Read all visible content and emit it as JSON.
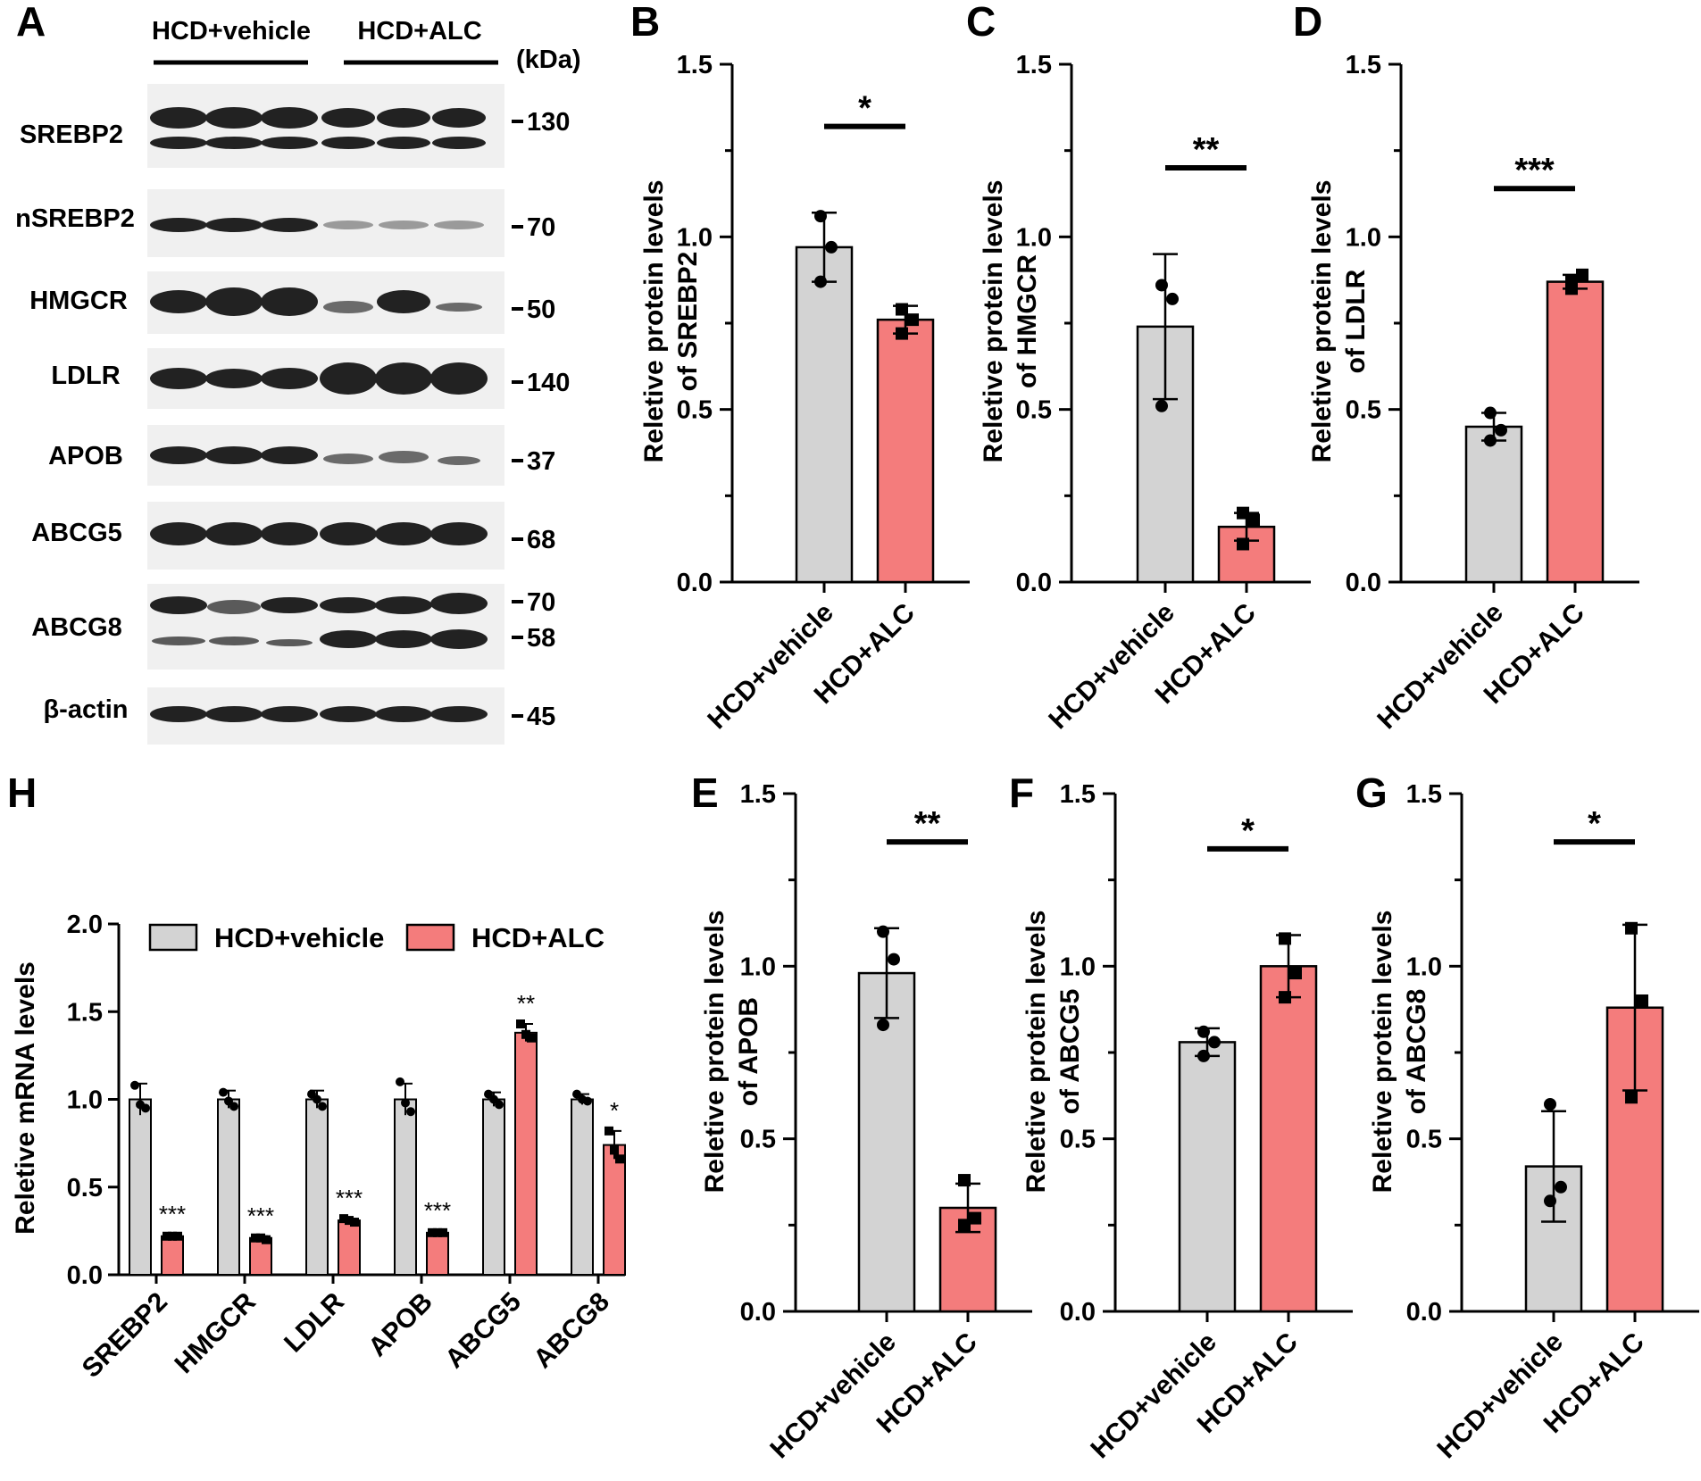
{
  "colors": {
    "vehicle": "#d3d3d3",
    "alc": "#f47c7c",
    "edge": "#000000",
    "blot_bg": "#f0f0f0"
  },
  "groups": [
    "HCD+vehicle",
    "HCD+ALC"
  ],
  "panel_A": {
    "letter": "A",
    "group_header_1": "HCD+vehicle",
    "group_header_2": "HCD+ALC",
    "kda_unit": "(kDa)",
    "blots": [
      {
        "label": "SREBP2",
        "markers": [
          "130"
        ]
      },
      {
        "label": "nSREBP2",
        "markers": [
          "70"
        ]
      },
      {
        "label": "HMGCR",
        "markers": [
          "50"
        ]
      },
      {
        "label": "LDLR",
        "markers": [
          "140"
        ]
      },
      {
        "label": "APOB",
        "markers": [
          "37"
        ]
      },
      {
        "label": "ABCG5",
        "markers": [
          "68"
        ]
      },
      {
        "label": "ABCG8",
        "markers": [
          "70",
          "58"
        ]
      },
      {
        "label": "β-actin",
        "markers": [
          "45"
        ]
      }
    ]
  },
  "chart_data": [
    {
      "panel": "B",
      "type": "bar",
      "ylabel_line1": "Reletive protein levels",
      "ylabel_line2": "of SREBP2",
      "ylim": [
        0,
        1.5
      ],
      "yticks": [
        "0.0",
        "0.5",
        "1.0",
        "1.5"
      ],
      "categories": [
        "HCD+vehicle",
        "HCD+ALC"
      ],
      "values": [
        0.97,
        0.76
      ],
      "errors": [
        0.1,
        0.04
      ],
      "points": [
        [
          1.06,
          0.97,
          0.87
        ],
        [
          0.79,
          0.76,
          0.72
        ]
      ],
      "significance": "*"
    },
    {
      "panel": "C",
      "type": "bar",
      "ylabel_line1": "Reletive protein levels",
      "ylabel_line2": "of HMGCR",
      "ylim": [
        0,
        1.5
      ],
      "yticks": [
        "0.0",
        "0.5",
        "1.0",
        "1.5"
      ],
      "categories": [
        "HCD+vehicle",
        "HCD+ALC"
      ],
      "values": [
        0.74,
        0.16
      ],
      "errors": [
        0.21,
        0.04
      ],
      "points": [
        [
          0.86,
          0.82,
          0.51
        ],
        [
          0.2,
          0.18,
          0.11
        ]
      ],
      "significance": "**"
    },
    {
      "panel": "D",
      "type": "bar",
      "ylabel_line1": "Reletive protein levels",
      "ylabel_line2": "of LDLR",
      "ylim": [
        0,
        1.5
      ],
      "yticks": [
        "0.0",
        "0.5",
        "1.0",
        "1.5"
      ],
      "categories": [
        "HCD+vehicle",
        "HCD+ALC"
      ],
      "values": [
        0.45,
        0.87
      ],
      "errors": [
        0.04,
        0.02
      ],
      "points": [
        [
          0.49,
          0.44,
          0.41
        ],
        [
          0.87,
          0.89,
          0.85
        ]
      ],
      "significance": "***"
    },
    {
      "panel": "E",
      "type": "bar",
      "ylabel_line1": "Reletive protein levels",
      "ylabel_line2": "of APOB",
      "ylim": [
        0,
        1.5
      ],
      "yticks": [
        "0.0",
        "0.5",
        "1.0",
        "1.5"
      ],
      "categories": [
        "HCD+vehicle",
        "HCD+ALC"
      ],
      "values": [
        0.98,
        0.3
      ],
      "errors": [
        0.13,
        0.07
      ],
      "points": [
        [
          1.1,
          1.02,
          0.83
        ],
        [
          0.38,
          0.27,
          0.25
        ]
      ],
      "significance": "**"
    },
    {
      "panel": "F",
      "type": "bar",
      "ylabel_line1": "Reletive protein levels",
      "ylabel_line2": "of ABCG5",
      "ylim": [
        0,
        1.5
      ],
      "yticks": [
        "0.0",
        "0.5",
        "1.0",
        "1.5"
      ],
      "categories": [
        "HCD+vehicle",
        "HCD+ALC"
      ],
      "values": [
        0.78,
        1.0
      ],
      "errors": [
        0.04,
        0.09
      ],
      "points": [
        [
          0.81,
          0.78,
          0.74
        ],
        [
          1.08,
          0.98,
          0.91
        ]
      ],
      "significance": "*"
    },
    {
      "panel": "G",
      "type": "bar",
      "ylabel_line1": "Reletive protein levels",
      "ylabel_line2": "of ABCG8",
      "ylim": [
        0,
        1.5
      ],
      "yticks": [
        "0.0",
        "0.5",
        "1.0",
        "1.5"
      ],
      "categories": [
        "HCD+vehicle",
        "HCD+ALC"
      ],
      "values": [
        0.42,
        0.88
      ],
      "errors": [
        0.16,
        0.24
      ],
      "points": [
        [
          0.6,
          0.36,
          0.32
        ],
        [
          1.11,
          0.9,
          0.62
        ]
      ],
      "significance": "*"
    },
    {
      "panel": "H",
      "type": "bar",
      "ylabel": "Reletive mRNA levels",
      "ylim": [
        0,
        2.0
      ],
      "yticks": [
        "0.0",
        "0.5",
        "1.0",
        "1.5",
        "2.0"
      ],
      "categories": [
        "SREBP2",
        "HMGCR",
        "LDLR",
        "APOB",
        "ABCG5",
        "ABCG8"
      ],
      "series": [
        {
          "name": "HCD+vehicle",
          "values": [
            1.0,
            1.0,
            1.0,
            1.0,
            1.0,
            1.0
          ],
          "errors": [
            0.09,
            0.05,
            0.05,
            0.09,
            0.04,
            0.03
          ],
          "points": [
            [
              1.08,
              0.97,
              0.95
            ],
            [
              1.04,
              0.99,
              0.96
            ],
            [
              1.03,
              1.0,
              0.96
            ],
            [
              1.1,
              0.98,
              0.93
            ],
            [
              1.03,
              1.0,
              0.97
            ],
            [
              1.03,
              1.0,
              0.99
            ]
          ],
          "significance": [
            "",
            "",
            "",
            "",
            "",
            ""
          ]
        },
        {
          "name": "HCD+ALC",
          "values": [
            0.22,
            0.21,
            0.31,
            0.24,
            1.38,
            0.74
          ],
          "errors": [
            0.01,
            0.01,
            0.01,
            0.01,
            0.05,
            0.08
          ],
          "points": [
            [
              0.22,
              0.22,
              0.22
            ],
            [
              0.21,
              0.21,
              0.2
            ],
            [
              0.32,
              0.31,
              0.3
            ],
            [
              0.24,
              0.24,
              0.24
            ],
            [
              1.43,
              1.37,
              1.35
            ],
            [
              0.82,
              0.71,
              0.66
            ]
          ],
          "significance": [
            "***",
            "***",
            "***",
            "***",
            "**",
            "*"
          ]
        }
      ]
    }
  ]
}
